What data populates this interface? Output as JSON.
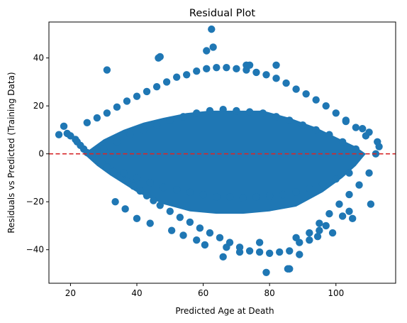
{
  "chart_data": {
    "type": "scatter",
    "title": "Residual Plot",
    "xlabel": "Predicted Age at Death",
    "ylabel": "Residuals vs Predicted (Training Data)",
    "xlim": [
      13.5,
      118
    ],
    "ylim": [
      -54,
      55
    ],
    "xticks": [
      20,
      40,
      60,
      80,
      100
    ],
    "yticks": [
      -40,
      -20,
      0,
      20,
      40
    ],
    "grid": false,
    "legend": "none",
    "marker_color": "#1f77b4",
    "reference_line": {
      "y": 0,
      "color": "#d62728",
      "style": "dashed"
    },
    "series": [
      {
        "x": [
          16.5,
          18.0,
          19.0,
          20.0,
          21.5,
          22.0,
          23.0,
          24.0,
          25.0,
          26.5,
          28.0,
          29.5,
          31.0,
          33.0,
          35.0,
          37.0,
          39.0,
          41.0,
          43.0,
          45.0,
          47.0,
          50.0,
          53.0,
          56.0,
          59.0,
          62.0,
          65.0,
          68.0,
          71.0,
          74.0,
          77.0,
          80.0,
          83.0,
          86.0,
          89.0,
          92.0,
          95.0,
          98.0,
          101.0,
          104.0,
          107.0,
          110.0,
          112.0,
          113.0,
          25.0,
          28.0,
          31.0,
          34.0,
          37.0,
          40.0,
          43.0,
          46.0,
          49.0,
          52.0,
          55.0,
          58.0,
          61.0,
          64.0,
          67.0,
          70.0,
          73.0,
          76.0,
          79.0,
          82.0,
          85.0,
          88.0,
          91.0,
          94.0,
          97.0,
          100.0,
          103.0,
          106.0,
          109.0,
          30.0,
          34.0,
          38.0,
          42.0,
          46.0,
          50.0,
          54.0,
          58.0,
          62.0,
          66.0,
          70.0,
          74.0,
          78.0,
          82.0,
          86.0,
          90.0,
          94.0,
          98.0,
          102.0,
          106.0,
          36.0,
          40.0,
          44.0,
          48.0,
          52.0,
          56.0,
          60.0,
          64.0,
          68.0,
          72.0,
          76.0,
          80.0,
          84.0,
          88.0,
          92.0,
          96.0,
          100.0,
          104.0,
          62.5,
          63.0,
          61.0,
          31.0,
          46.5,
          47.0,
          73.0,
          74.0,
          82.0,
          77.0,
          79.0,
          85.5,
          86.0,
          89.0,
          66.0,
          60.5,
          67.0,
          71.0,
          58.0,
          54.0,
          50.5,
          44.0,
          40.0,
          36.5,
          33.5,
          103.0,
          108.0,
          110.0,
          112.5,
          105.0,
          99.0,
          94.5,
          92.0,
          88.0,
          104.0,
          110.5,
          102.0,
          95.0,
          97.0
        ],
        "y": [
          8.0,
          11.5,
          8.5,
          7.5,
          6.0,
          5.0,
          3.5,
          2.0,
          0.5,
          -1.0,
          -2.5,
          -4.0,
          -5.5,
          -7.5,
          -9.5,
          -11.5,
          -13.5,
          -15.5,
          -17.5,
          -19.5,
          -21.5,
          -24.0,
          -26.5,
          -28.5,
          -31.0,
          -33.0,
          -35.0,
          -37.0,
          -39.0,
          -40.5,
          -41.0,
          -41.5,
          -41.0,
          -40.5,
          -37.0,
          -33.0,
          -29.0,
          -25.0,
          -21.0,
          -17.0,
          -13.0,
          -8.0,
          0.0,
          3.0,
          13.0,
          15.0,
          17.0,
          19.5,
          22.0,
          24.0,
          26.0,
          28.0,
          30.0,
          32.0,
          33.0,
          34.5,
          35.5,
          36.0,
          36.0,
          35.5,
          35.0,
          34.0,
          33.0,
          31.5,
          29.5,
          27.0,
          25.0,
          22.5,
          20.0,
          17.0,
          14.0,
          11.0,
          7.5,
          2.0,
          5.0,
          8.0,
          10.0,
          12.0,
          14.0,
          15.5,
          17.0,
          18.0,
          18.5,
          18.0,
          17.5,
          17.0,
          15.5,
          14.0,
          12.0,
          10.0,
          8.0,
          5.0,
          2.0,
          -8.0,
          -10.0,
          -12.0,
          -14.0,
          -15.0,
          -16.0,
          -17.0,
          -18.0,
          -18.0,
          -18.5,
          -18.0,
          -17.5,
          -17.0,
          -16.0,
          -14.5,
          -12.5,
          -10.5,
          -8.0,
          52.0,
          44.5,
          43.0,
          35.0,
          40.0,
          40.5,
          37.0,
          37.0,
          37.0,
          -37.0,
          -49.5,
          -48.0,
          -48.0,
          -42.0,
          -43.0,
          -38.0,
          -39.0,
          -41.0,
          -36.0,
          -34.0,
          -32.0,
          -29.0,
          -27.0,
          -23.0,
          -20.0,
          13.5,
          10.5,
          9.0,
          5.0,
          -27.0,
          -33.0,
          -34.5,
          -36.0,
          -35.0,
          -24.0,
          -21.0,
          -26.0,
          -32.0,
          -30.0
        ]
      }
    ]
  }
}
